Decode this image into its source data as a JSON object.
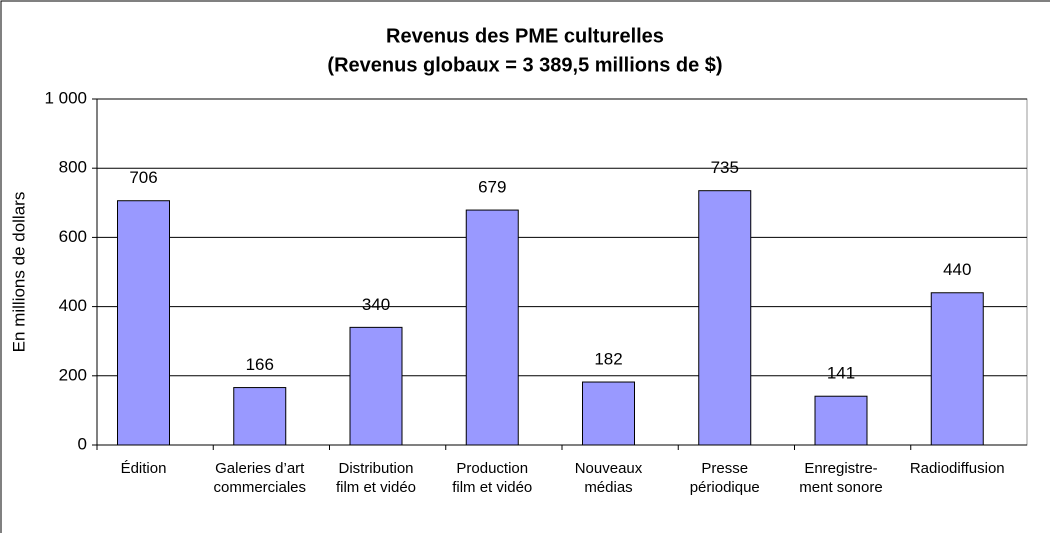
{
  "chart_data": {
    "type": "bar",
    "title": "Revenus des PME culturelles",
    "subtitle": "(Revenus globaux = 3 389,5 millions de $)",
    "y_label": "En millions de dollars",
    "categories": [
      "Édition",
      "Galeries d’art\ncommerciales",
      "Distribution\nfilm et vidéo",
      "Production\nfilm et vidéo",
      "Nouveaux\nmédias",
      "Presse\npériodique",
      "Enregistre-\nment sonore",
      "Radiodiffusion"
    ],
    "values": [
      706,
      166,
      340,
      679,
      182,
      735,
      141,
      440
    ],
    "color": "#9999ff",
    "ylim": [
      0,
      1000
    ],
    "yticks": [
      0,
      200,
      400,
      600,
      800,
      {
        "value": 1000,
        "label": "1 000"
      }
    ],
    "grid": true
  }
}
